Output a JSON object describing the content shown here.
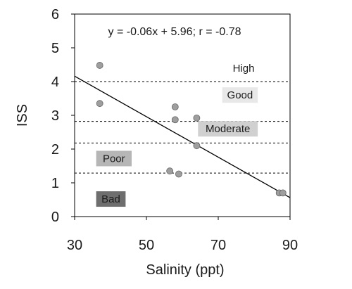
{
  "chart_data": {
    "type": "scatter",
    "xlabel": "Salinity (ppt)",
    "ylabel": "ISS",
    "xlim": [
      30,
      90
    ],
    "ylim": [
      0,
      6
    ],
    "x_ticks": [
      "30",
      "50",
      "70",
      "90"
    ],
    "y_ticks": [
      "0",
      "1",
      "2",
      "3",
      "4",
      "5",
      "6"
    ],
    "grid": false,
    "annotation": "y = -0.06x + 5.96; r = -0.78",
    "points": [
      {
        "x": 37,
        "y": 4.48
      },
      {
        "x": 37,
        "y": 3.35
      },
      {
        "x": 58,
        "y": 3.25
      },
      {
        "x": 58,
        "y": 2.87
      },
      {
        "x": 64,
        "y": 2.92
      },
      {
        "x": 64,
        "y": 2.1
      },
      {
        "x": 56.5,
        "y": 1.35
      },
      {
        "x": 59,
        "y": 1.26
      },
      {
        "x": 87,
        "y": 0.7
      },
      {
        "x": 88,
        "y": 0.7
      }
    ],
    "point_color": "#9e9e9e",
    "trendline": {
      "slope": -0.06,
      "intercept": 5.96
    },
    "thresholds": [
      4.0,
      2.82,
      2.18,
      1.29
    ],
    "classes": [
      {
        "label": "High",
        "y": 4.4,
        "x": 82,
        "anchor": "right",
        "color": "#ffffff"
      },
      {
        "label": "Good",
        "y": 3.6,
        "x": 81,
        "anchor": "right",
        "color": "#e8e8e8"
      },
      {
        "label": "Moderate",
        "y": 2.6,
        "x": 81,
        "anchor": "right",
        "color": "#d0d0d0"
      },
      {
        "label": "Poor",
        "y": 1.72,
        "x": 36,
        "anchor": "left",
        "color": "#b6b6b6"
      },
      {
        "label": "Bad",
        "y": 0.52,
        "x": 36,
        "anchor": "left",
        "color": "#6e6e6e"
      }
    ]
  }
}
